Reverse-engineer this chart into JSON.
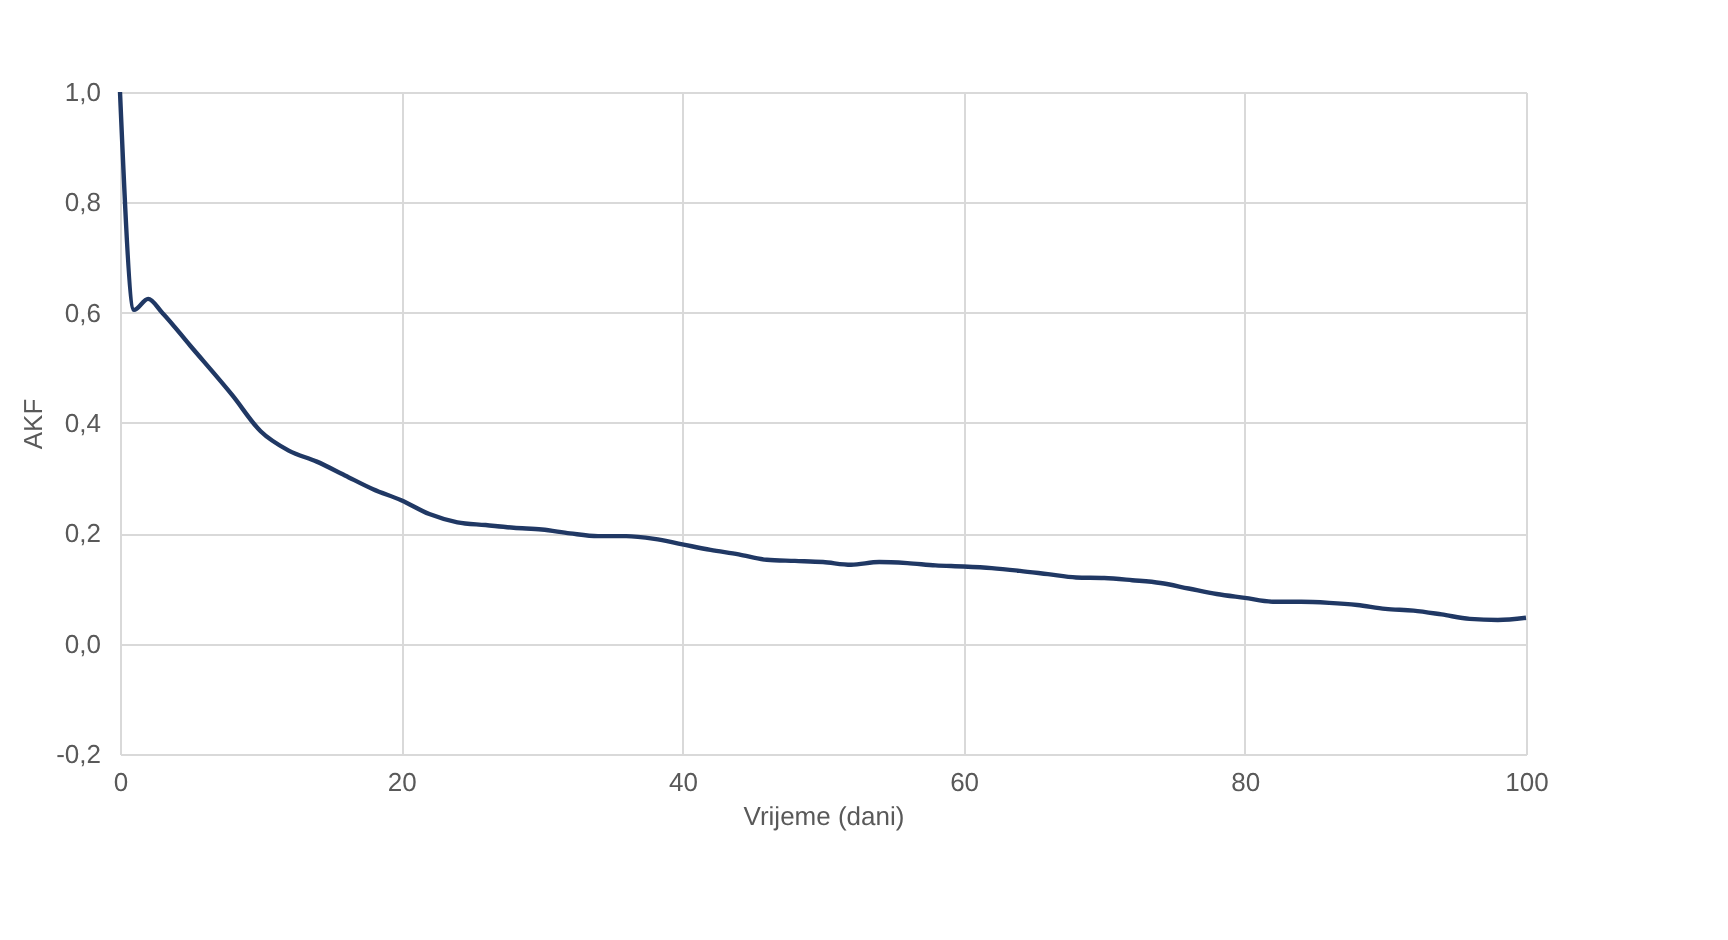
{
  "chart_data": {
    "type": "line",
    "xlabel": "Vrijeme (dani)",
    "ylabel": "AKF",
    "x": [
      0,
      1,
      2,
      3,
      5,
      8,
      10,
      12,
      14,
      16,
      18,
      20,
      22,
      24,
      26,
      28,
      30,
      32,
      34,
      36,
      38,
      40,
      42,
      44,
      46,
      48,
      50,
      52,
      54,
      56,
      58,
      60,
      62,
      64,
      66,
      68,
      70,
      72,
      74,
      76,
      78,
      80,
      82,
      84,
      86,
      88,
      90,
      92,
      94,
      96,
      98,
      100
    ],
    "series": [
      {
        "color": "#203864",
        "values": [
          1.0,
          0.605,
          0.625,
          0.6,
          0.54,
          0.45,
          0.385,
          0.35,
          0.33,
          0.305,
          0.28,
          0.26,
          0.235,
          0.22,
          0.215,
          0.21,
          0.207,
          0.2,
          0.195,
          0.195,
          0.19,
          0.18,
          0.17,
          0.162,
          0.152,
          0.15,
          0.148,
          0.143,
          0.148,
          0.146,
          0.142,
          0.14,
          0.137,
          0.132,
          0.126,
          0.12,
          0.119,
          0.115,
          0.11,
          0.1,
          0.09,
          0.083,
          0.076,
          0.076,
          0.074,
          0.07,
          0.063,
          0.06,
          0.053,
          0.045,
          0.043,
          0.047
        ]
      }
    ],
    "xlim": [
      0,
      100
    ],
    "xticks": [
      0,
      20,
      40,
      60,
      80,
      100
    ],
    "ylim": [
      -0.2,
      1.0
    ],
    "yticks": [
      {
        "value": -0.2,
        "label": "-0,2"
      },
      {
        "value": 0.0,
        "label": "0,0"
      },
      {
        "value": 0.2,
        "label": "0,2"
      },
      {
        "value": 0.4,
        "label": "0,4"
      },
      {
        "value": 0.6,
        "label": "0,6"
      },
      {
        "value": 0.8,
        "label": "0,8"
      },
      {
        "value": 1.0,
        "label": "1,0"
      }
    ],
    "grid": true,
    "marker": "none",
    "line_style": "solid"
  }
}
